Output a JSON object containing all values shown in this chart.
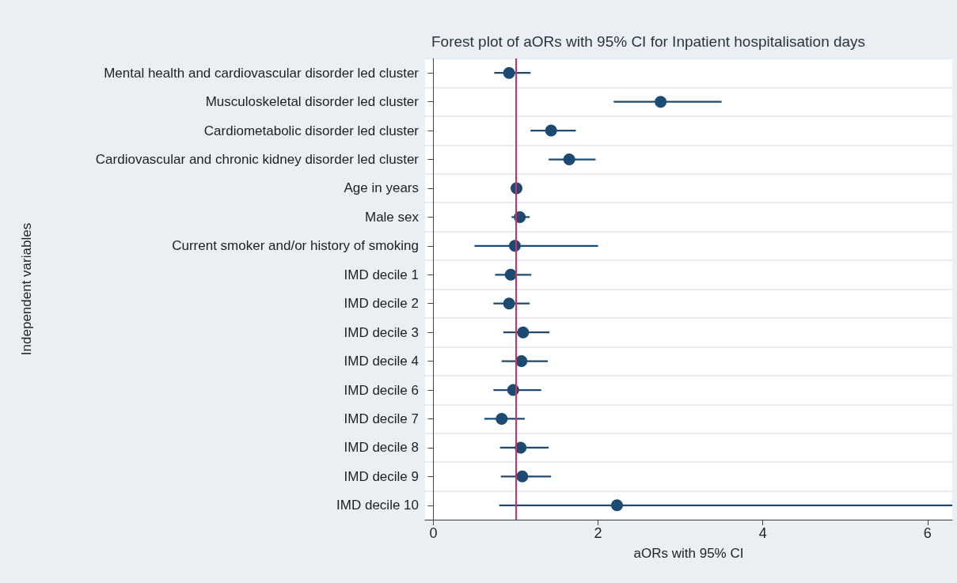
{
  "chart_data": {
    "type": "scatter",
    "title": "Forest plot of aORs with 95% CI for Inpatient hospitalisation days",
    "xlabel": "aORs with 95% CI",
    "ylabel": "Independent variables",
    "orientation": "horizontal",
    "categories": [
      "Mental health and cardiovascular disorder led cluster",
      "Musculoskeletal disorder led cluster",
      "Cardiometabolic disorder led cluster",
      "Cardiovascular and chronic kidney disorder led cluster",
      "Age in years",
      "Male sex",
      "Current smoker and/or history of smoking",
      "IMD decile 1",
      "IMD decile 2",
      "IMD decile 3",
      "IMD decile 4",
      "IMD decile 6",
      "IMD decile 7",
      "IMD decile 8",
      "IMD decile 9",
      "IMD decile 10"
    ],
    "series": [
      {
        "color": "#1b4a73",
        "values": [
          0.92,
          2.76,
          1.43,
          1.65,
          1.01,
          1.05,
          0.99,
          0.94,
          0.92,
          1.09,
          1.07,
          0.97,
          0.83,
          1.06,
          1.08,
          2.23
        ],
        "errors": [
          [
            0.74,
            1.18
          ],
          [
            2.19,
            3.5
          ],
          [
            1.18,
            1.73
          ],
          [
            1.4,
            1.97
          ],
          [
            0.99,
            1.02
          ],
          [
            0.95,
            1.17
          ],
          [
            0.5,
            2.0
          ],
          [
            0.75,
            1.19
          ],
          [
            0.73,
            1.17
          ],
          [
            0.85,
            1.41
          ],
          [
            0.83,
            1.39
          ],
          [
            0.73,
            1.31
          ],
          [
            0.62,
            1.11
          ],
          [
            0.81,
            1.4
          ],
          [
            0.82,
            1.43
          ],
          [
            0.8,
            6.3
          ]
        ]
      }
    ],
    "xlim": [
      -0.1,
      6.3
    ],
    "xticks": [
      0,
      2,
      4,
      6
    ],
    "grid": "y",
    "marker": "circle",
    "ref_lines": [
      {
        "axis": "x",
        "value": 1,
        "color": "#d62d5b"
      }
    ]
  }
}
